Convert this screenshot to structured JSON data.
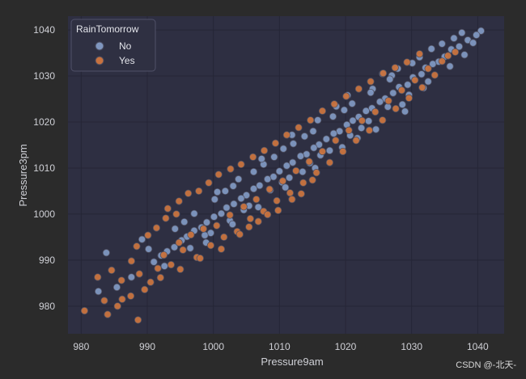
{
  "chart_data": {
    "type": "scatter",
    "xlabel": "Pressure9am",
    "ylabel": "Pressure3pm",
    "xlim": [
      978,
      1044
    ],
    "ylim": [
      974,
      1043
    ],
    "xticks": [
      980,
      990,
      1000,
      1010,
      1020,
      1030,
      1040
    ],
    "yticks": [
      980,
      990,
      1000,
      1010,
      1020,
      1030,
      1040
    ],
    "xtick_labels": [
      "980",
      "990",
      "1000",
      "1010",
      "1020",
      "1030",
      "1040"
    ],
    "ytick_labels": [
      "980",
      "990",
      "1000",
      "1010",
      "1020",
      "1030",
      "1040"
    ],
    "grid": true,
    "legend_placement": "top-left",
    "legend": {
      "title": "RainTomorrow",
      "entries": [
        "No",
        "Yes"
      ]
    },
    "series": [
      {
        "name": "No",
        "color": "#7f96bf",
        "points": [
          [
            1040.5,
            1039.8
          ],
          [
            1039.8,
            1038.9
          ],
          [
            1038.5,
            1037.8
          ],
          [
            1037.2,
            1036.4
          ],
          [
            1036.0,
            1035.8
          ],
          [
            1035.0,
            1034.2
          ],
          [
            1034.1,
            1033.1
          ],
          [
            1033.2,
            1032.6
          ],
          [
            1032.1,
            1031.8
          ],
          [
            1031.5,
            1030.4
          ],
          [
            1030.2,
            1029.7
          ],
          [
            1029.4,
            1028.1
          ],
          [
            1028.1,
            1027.6
          ],
          [
            1027.2,
            1026.3
          ],
          [
            1026.0,
            1025.1
          ],
          [
            1025.2,
            1024.4
          ],
          [
            1024.0,
            1023.0
          ],
          [
            1023.1,
            1022.4
          ],
          [
            1022.0,
            1021.1
          ],
          [
            1021.1,
            1020.3
          ],
          [
            1020.2,
            1019.4
          ],
          [
            1019.1,
            1018.0
          ],
          [
            1018.2,
            1017.5
          ],
          [
            1017.1,
            1016.3
          ],
          [
            1016.0,
            1015.1
          ],
          [
            1015.2,
            1014.4
          ],
          [
            1014.1,
            1013.0
          ],
          [
            1013.2,
            1012.6
          ],
          [
            1012.0,
            1011.2
          ],
          [
            1011.1,
            1010.5
          ],
          [
            1010.0,
            1009.3
          ],
          [
            1009.1,
            1008.1
          ],
          [
            1008.2,
            1007.6
          ],
          [
            1007.0,
            1006.2
          ],
          [
            1006.1,
            1005.5
          ],
          [
            1005.0,
            1004.1
          ],
          [
            1004.2,
            1003.4
          ],
          [
            1003.1,
            1002.2
          ],
          [
            1002.0,
            1001.4
          ],
          [
            1001.2,
            1000.1
          ],
          [
            1000.1,
            999.4
          ],
          [
            999.0,
            998.2
          ],
          [
            998.2,
            997.1
          ],
          [
            997.1,
            996.4
          ],
          [
            996.0,
            995.1
          ],
          [
            995.2,
            994.3
          ],
          [
            994.1,
            992.8
          ],
          [
            993.0,
            991.9
          ],
          [
            992.1,
            991.0
          ],
          [
            991.0,
            989.6
          ],
          [
            1035.8,
            1032.1
          ],
          [
            1032.5,
            1028.8
          ],
          [
            1029.6,
            1025.9
          ],
          [
            1026.4,
            1023.3
          ],
          [
            1023.5,
            1020.2
          ],
          [
            1020.7,
            1017.1
          ],
          [
            1017.6,
            1013.8
          ],
          [
            1014.6,
            1011.1
          ],
          [
            1011.5,
            1007.9
          ],
          [
            1008.6,
            1005.2
          ],
          [
            1005.4,
            1001.8
          ],
          [
            1002.5,
            998.6
          ],
          [
            999.6,
            995.9
          ],
          [
            996.5,
            992.6
          ],
          [
            1033.0,
            1035.9
          ],
          [
            1030.1,
            1032.8
          ],
          [
            1027.0,
            1030.1
          ],
          [
            1024.1,
            1027.2
          ],
          [
            1021.0,
            1024.0
          ],
          [
            1018.1,
            1021.2
          ],
          [
            1015.1,
            1018.0
          ],
          [
            1012.1,
            1015.3
          ],
          [
            1009.2,
            1012.4
          ],
          [
            1006.1,
            1009.2
          ],
          [
            1003.0,
            1006.1
          ],
          [
            1000.2,
            1003.2
          ],
          [
            997.1,
            1000.1
          ],
          [
            994.2,
            996.8
          ],
          [
            1038.0,
            1034.6
          ],
          [
            1036.4,
            1038.2
          ],
          [
            1031.2,
            1034.1
          ],
          [
            1028.6,
            1023.8
          ],
          [
            1026.7,
            1029.3
          ],
          [
            1022.4,
            1018.7
          ],
          [
            1019.8,
            1022.6
          ],
          [
            1016.2,
            1012.8
          ],
          [
            1013.8,
            1016.9
          ],
          [
            1010.4,
            1006.9
          ],
          [
            1007.6,
            1010.8
          ],
          [
            1004.6,
            1000.9
          ],
          [
            1001.8,
            1005.0
          ],
          [
            998.7,
            995.4
          ],
          [
            995.6,
            998.3
          ],
          [
            992.6,
            988.7
          ],
          [
            990.2,
            992.4
          ],
          [
            987.6,
            986.3
          ],
          [
            985.4,
            984.1
          ],
          [
            982.6,
            983.2
          ],
          [
            983.8,
            991.6
          ],
          [
            989.2,
            994.5
          ],
          [
            1025.6,
            1030.5
          ],
          [
            1020.3,
            1025.8
          ],
          [
            1015.8,
            1020.4
          ],
          [
            1011.9,
            1017.2
          ],
          [
            1007.3,
            1012.0
          ],
          [
            1003.8,
            1007.6
          ],
          [
            1000.6,
            1004.8
          ],
          [
            1029.0,
            1022.3
          ],
          [
            1024.6,
            1018.4
          ],
          [
            1019.5,
            1014.5
          ],
          [
            1015.4,
            1010.0
          ],
          [
            1010.9,
            1005.8
          ],
          [
            1006.8,
            1001.5
          ],
          [
            1002.9,
            997.8
          ],
          [
            998.9,
            993.8
          ],
          [
            1034.6,
            1037.0
          ],
          [
            1037.6,
            1039.4
          ],
          [
            1039.3,
            1037.2
          ],
          [
            1031.8,
            1027.4
          ],
          [
            1027.9,
            1031.6
          ],
          [
            1023.8,
            1026.4
          ],
          [
            1021.8,
            1016.5
          ],
          [
            1018.6,
            1023.4
          ],
          [
            1013.5,
            1009.2
          ],
          [
            1010.6,
            1014.2
          ]
        ]
      },
      {
        "name": "Yes",
        "color": "#c8723f",
        "points": [
          [
            980.5,
            979.0
          ],
          [
            983.5,
            981.2
          ],
          [
            984.0,
            978.2
          ],
          [
            985.5,
            980.0
          ],
          [
            986.2,
            981.5
          ],
          [
            987.5,
            982.2
          ],
          [
            988.6,
            977.0
          ],
          [
            989.6,
            983.6
          ],
          [
            982.5,
            986.3
          ],
          [
            984.6,
            987.8
          ],
          [
            986.1,
            985.6
          ],
          [
            987.6,
            989.8
          ],
          [
            988.8,
            987.0
          ],
          [
            990.5,
            985.2
          ],
          [
            991.6,
            988.2
          ],
          [
            992.5,
            991.1
          ],
          [
            993.6,
            989.0
          ],
          [
            994.8,
            993.8
          ],
          [
            995.4,
            992.2
          ],
          [
            996.6,
            995.5
          ],
          [
            997.5,
            990.6
          ],
          [
            998.5,
            996.8
          ],
          [
            999.6,
            993.2
          ],
          [
            1000.5,
            997.5
          ],
          [
            1001.6,
            995.0
          ],
          [
            1002.5,
            999.8
          ],
          [
            1003.6,
            996.2
          ],
          [
            1004.6,
            1001.6
          ],
          [
            1005.6,
            999.0
          ],
          [
            1006.5,
            1003.2
          ],
          [
            1007.6,
            1000.6
          ],
          [
            1008.5,
            1005.4
          ],
          [
            1009.6,
            1002.9
          ],
          [
            1010.5,
            1007.2
          ],
          [
            1011.6,
            1004.6
          ],
          [
            1012.5,
            1009.4
          ],
          [
            1013.6,
            1006.8
          ],
          [
            1014.5,
            1011.4
          ],
          [
            1015.6,
            1009.0
          ],
          [
            1016.5,
            1013.6
          ],
          [
            1017.6,
            1011.2
          ],
          [
            1018.5,
            1016.0
          ],
          [
            1019.6,
            1013.6
          ],
          [
            1020.5,
            1018.2
          ],
          [
            1021.6,
            1016.0
          ],
          [
            1022.5,
            1020.3
          ],
          [
            1023.6,
            1018.2
          ],
          [
            1024.5,
            1022.2
          ],
          [
            1025.6,
            1020.4
          ],
          [
            1026.5,
            1024.6
          ],
          [
            1027.6,
            1022.9
          ],
          [
            1028.5,
            1026.9
          ],
          [
            1029.6,
            1025.2
          ],
          [
            1030.5,
            1029.1
          ],
          [
            1031.6,
            1027.5
          ],
          [
            1032.5,
            1031.6
          ],
          [
            1033.5,
            1030.2
          ],
          [
            1034.6,
            1033.2
          ],
          [
            1035.5,
            1034.4
          ],
          [
            1036.6,
            1035.2
          ],
          [
            993.1,
            1001.2
          ],
          [
            994.8,
            1002.8
          ],
          [
            996.2,
            1004.5
          ],
          [
            997.8,
            1005.0
          ],
          [
            999.3,
            1006.8
          ],
          [
            1000.8,
            1008.6
          ],
          [
            1002.6,
            1009.8
          ],
          [
            1004.2,
            1010.8
          ],
          [
            1006.0,
            1012.4
          ],
          [
            1007.7,
            1013.8
          ],
          [
            1009.4,
            1015.4
          ],
          [
            1011.1,
            1017.2
          ],
          [
            1012.9,
            1018.8
          ],
          [
            1014.7,
            1020.4
          ],
          [
            1016.5,
            1022.4
          ],
          [
            1018.3,
            1023.9
          ],
          [
            1020.1,
            1025.6
          ],
          [
            1022.0,
            1027.2
          ],
          [
            1023.8,
            1028.8
          ],
          [
            1025.7,
            1030.6
          ],
          [
            1027.5,
            1031.8
          ],
          [
            1029.3,
            1033.0
          ],
          [
            1031.2,
            1034.8
          ],
          [
            1004.0,
            995.6
          ],
          [
            1005.4,
            997.2
          ],
          [
            1006.8,
            998.4
          ],
          [
            1008.2,
            999.9
          ],
          [
            1009.8,
            1000.8
          ],
          [
            1001.2,
            992.4
          ],
          [
            998.0,
            990.4
          ],
          [
            995.0,
            988.0
          ],
          [
            992.0,
            986.2
          ],
          [
            1011.9,
            1003.2
          ],
          [
            1013.3,
            1004.4
          ],
          [
            1015.0,
            1007.4
          ],
          [
            988.4,
            993.0
          ],
          [
            990.1,
            995.4
          ],
          [
            991.4,
            997.0
          ],
          [
            992.8,
            999.1
          ],
          [
            994.4,
            1000.0
          ]
        ]
      }
    ]
  },
  "watermark": "CSDN @-北天-"
}
